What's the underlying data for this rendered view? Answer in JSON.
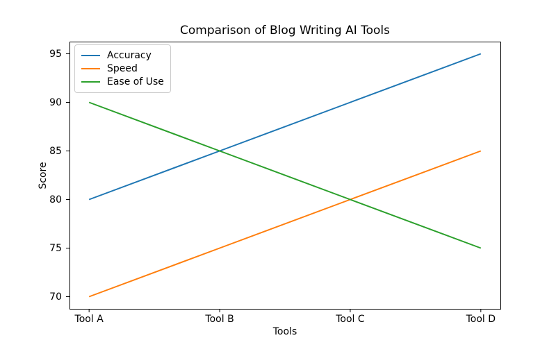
{
  "chart_data": {
    "type": "line",
    "title": "Comparison of Blog Writing AI Tools",
    "xlabel": "Tools",
    "ylabel": "Score",
    "categories": [
      "Tool A",
      "Tool B",
      "Tool C",
      "Tool D"
    ],
    "series": [
      {
        "name": "Accuracy",
        "color": "#1f77b4",
        "values": [
          80,
          85,
          90,
          95
        ]
      },
      {
        "name": "Speed",
        "color": "#ff7f0e",
        "values": [
          70,
          75,
          80,
          85
        ]
      },
      {
        "name": "Ease of Use",
        "color": "#2ca02c",
        "values": [
          90,
          85,
          80,
          75
        ]
      }
    ],
    "y_ticks": [
      70,
      75,
      80,
      85,
      90,
      95
    ],
    "ylim": [
      68.75,
      96.25
    ],
    "x_margin": 0.15,
    "grid": false,
    "legend_position": "upper-left",
    "line_width": 2,
    "spine_color": "#000000",
    "background_color": "#ffffff"
  }
}
